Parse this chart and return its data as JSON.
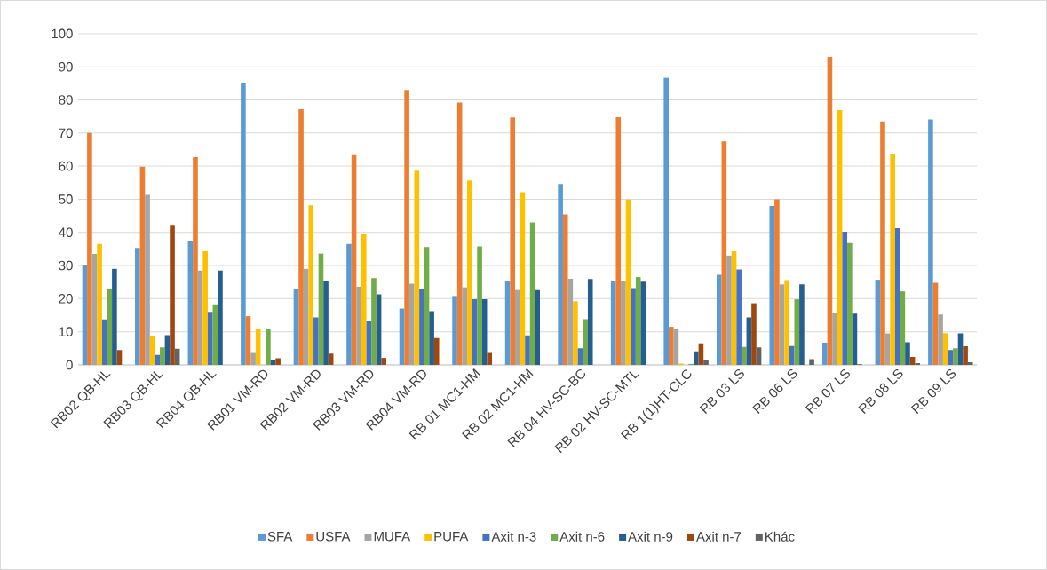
{
  "chart_data": {
    "type": "bar",
    "categories": [
      "RB02 QB-HL",
      "RB03 QB-HL",
      "RB04 QB-HL",
      "RB01 VM-RD",
      "RB02 VM-RD",
      "RB03 VM-RD",
      "RB04 VM-RD",
      "RB 01 MC1-HM",
      "RB 02 MC1-HM",
      "RB 04 HV-SC-BC",
      "RB 02 HV-SC-MTL",
      "RB 1(1)HT-CLC",
      "RB 03  LS",
      "RB 06  LS",
      "RB 07  LS",
      "RB 08  LS",
      "RB 09 LS"
    ],
    "series": [
      {
        "name": "SFA",
        "color": "#5b9bd5",
        "values": [
          30.2,
          35.3,
          37.3,
          85.2,
          23,
          36.5,
          17,
          20.8,
          25.2,
          54.6,
          25.2,
          86.7,
          27.2,
          48,
          6.7,
          25.7,
          74.1
        ]
      },
      {
        "name": "USFA",
        "color": "#ed7d31",
        "values": [
          70,
          59.8,
          62.7,
          14.7,
          77.2,
          63.3,
          83,
          79.2,
          74.7,
          45.4,
          74.8,
          11.5,
          67.5,
          50,
          93,
          73.5,
          24.8
        ]
      },
      {
        "name": "MUFA",
        "color": "#a5a5a5",
        "values": [
          33.5,
          51.3,
          28.5,
          3.6,
          29,
          23.6,
          24.5,
          23.4,
          22.6,
          26,
          25.2,
          10.8,
          33,
          24.3,
          15.8,
          9.5,
          15.2
        ]
      },
      {
        "name": "PUFA",
        "color": "#ffc000",
        "values": [
          36.5,
          8.7,
          34.3,
          10.8,
          48.2,
          39.6,
          58.6,
          55.7,
          52.1,
          19.2,
          49.9,
          0.4,
          34.3,
          25.6,
          77,
          63.8,
          9.6
        ]
      },
      {
        "name": "Axit n-3",
        "color": "#4472c4",
        "values": [
          13.7,
          3,
          16,
          null,
          14.3,
          13.1,
          23,
          19.8,
          8.9,
          5,
          23.2,
          null,
          28.8,
          5.7,
          40.2,
          41.3,
          4.5
        ]
      },
      {
        "name": "Axit n-6",
        "color": "#70ad47",
        "values": [
          23,
          5.3,
          18.3,
          10.8,
          33.6,
          26.2,
          35.6,
          35.8,
          43,
          13.8,
          26.5,
          0.3,
          5.4,
          19.8,
          36.8,
          22.2,
          5
        ]
      },
      {
        "name": "Axit n-9",
        "color": "#255e91",
        "values": [
          29,
          9,
          28.5,
          1.5,
          25.2,
          21.3,
          16.2,
          19.8,
          22.6,
          25.9,
          25.1,
          4.1,
          14.3,
          24.3,
          15.5,
          6.8,
          9.5
        ]
      },
      {
        "name": "Axit n-7",
        "color": "#9e480e",
        "values": [
          4.5,
          42.3,
          null,
          2,
          3.4,
          2.1,
          8.1,
          3.6,
          null,
          null,
          null,
          6.5,
          18.6,
          null,
          0.2,
          2.4,
          5.6
        ]
      },
      {
        "name": "Khác",
        "color": "#636363",
        "values": [
          null,
          4.9,
          null,
          null,
          null,
          null,
          null,
          null,
          null,
          null,
          null,
          1.6,
          5.3,
          1.7,
          null,
          0.5,
          0.8
        ]
      }
    ],
    "ylim": [
      0,
      100
    ],
    "yticks": [
      0,
      10,
      20,
      30,
      40,
      50,
      60,
      70,
      80,
      90,
      100
    ],
    "grid": "y",
    "legend": "bottom"
  }
}
